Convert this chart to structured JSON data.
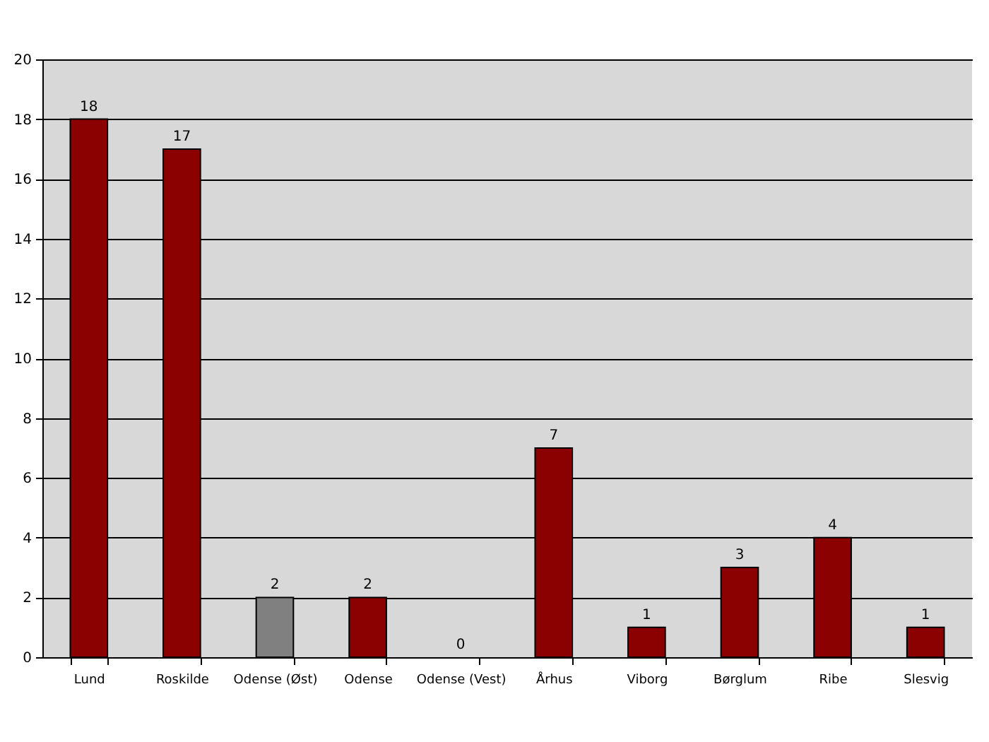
{
  "chart_data": {
    "type": "bar",
    "categories": [
      "Lund",
      "Roskilde",
      "Odense (Øst)",
      "Odense",
      "Odense (Vest)",
      "Århus",
      "Viborg",
      "Børglum",
      "Ribe",
      "Slesvig"
    ],
    "values": [
      18,
      17,
      2,
      2,
      0,
      7,
      1,
      3,
      4,
      1
    ],
    "colors": [
      "#8b0000",
      "#8b0000",
      "#808080",
      "#8b0000",
      "#8b0000",
      "#8b0000",
      "#8b0000",
      "#8b0000",
      "#8b0000",
      "#8b0000"
    ],
    "ylim": [
      0,
      20
    ],
    "yticks": [
      0,
      2,
      4,
      6,
      8,
      10,
      12,
      14,
      16,
      18,
      20
    ],
    "grid": "y",
    "data_labels": true
  }
}
